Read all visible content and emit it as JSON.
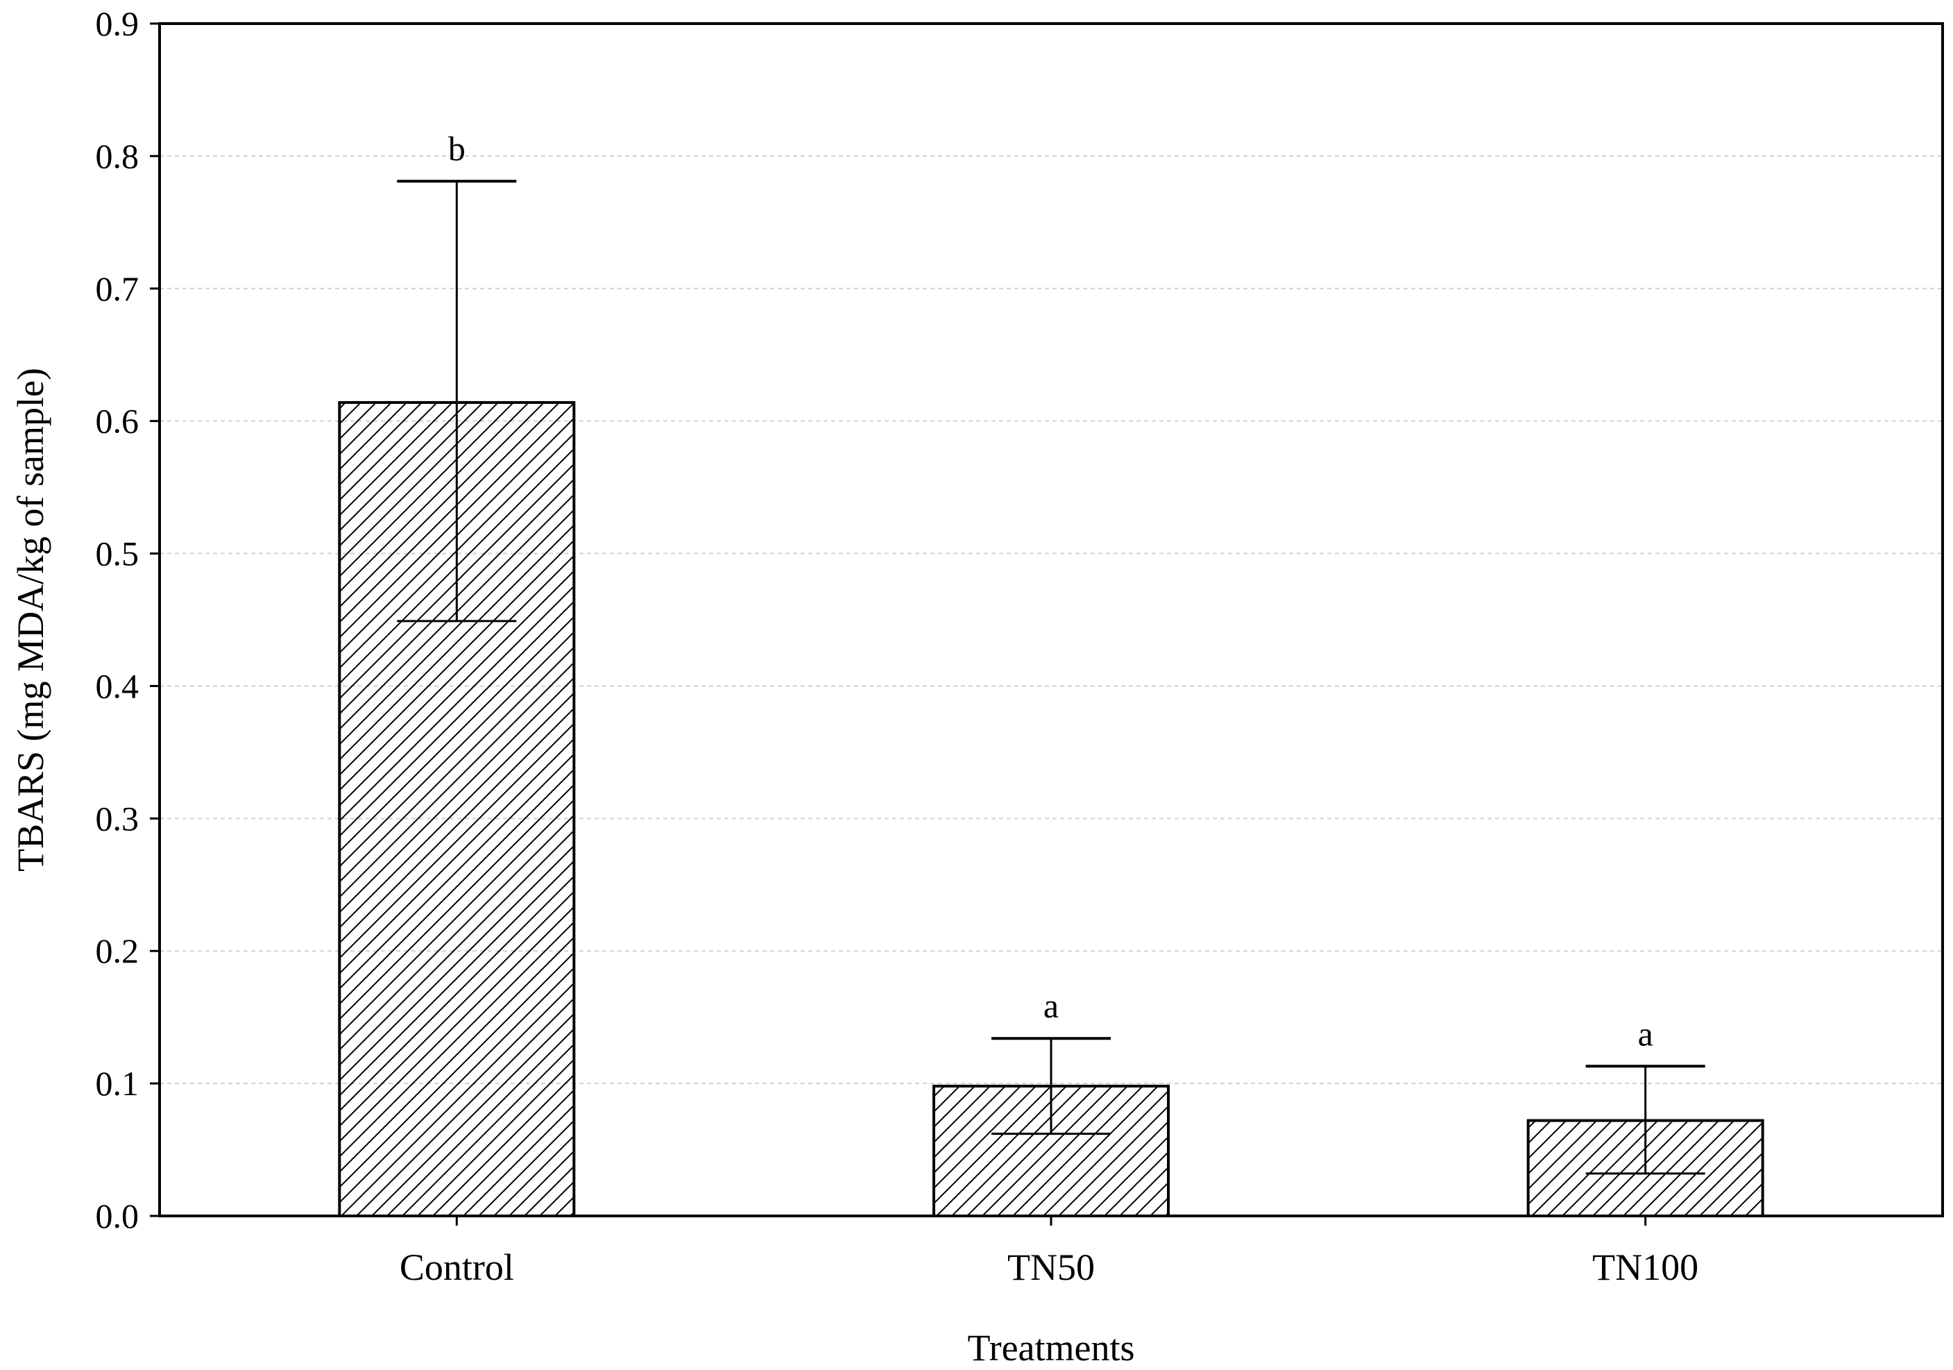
{
  "chart_data": {
    "type": "bar",
    "title": "",
    "xlabel": "Treatments",
    "ylabel": "TBARS (mg MDA/kg of sample)",
    "ylim": [
      0,
      0.9
    ],
    "yticks": [
      "0.0",
      "0.1",
      "0.2",
      "0.3",
      "0.4",
      "0.5",
      "0.6",
      "0.7",
      "0.8",
      "0.9"
    ],
    "ytick_values": [
      0.0,
      0.1,
      0.2,
      0.3,
      0.4,
      0.5,
      0.6,
      0.7,
      0.8,
      0.9
    ],
    "grid": true,
    "pattern": "diagonal-hatch",
    "categories": [
      "Control",
      "TN50",
      "TN100"
    ],
    "values": [
      0.614,
      0.098,
      0.072
    ],
    "error_bars": [
      {
        "lower": 0.449,
        "upper": 0.781
      },
      {
        "lower": 0.062,
        "upper": 0.134
      },
      {
        "lower": 0.032,
        "upper": 0.113
      }
    ],
    "significance_letters": [
      "b",
      "a",
      "a"
    ]
  }
}
